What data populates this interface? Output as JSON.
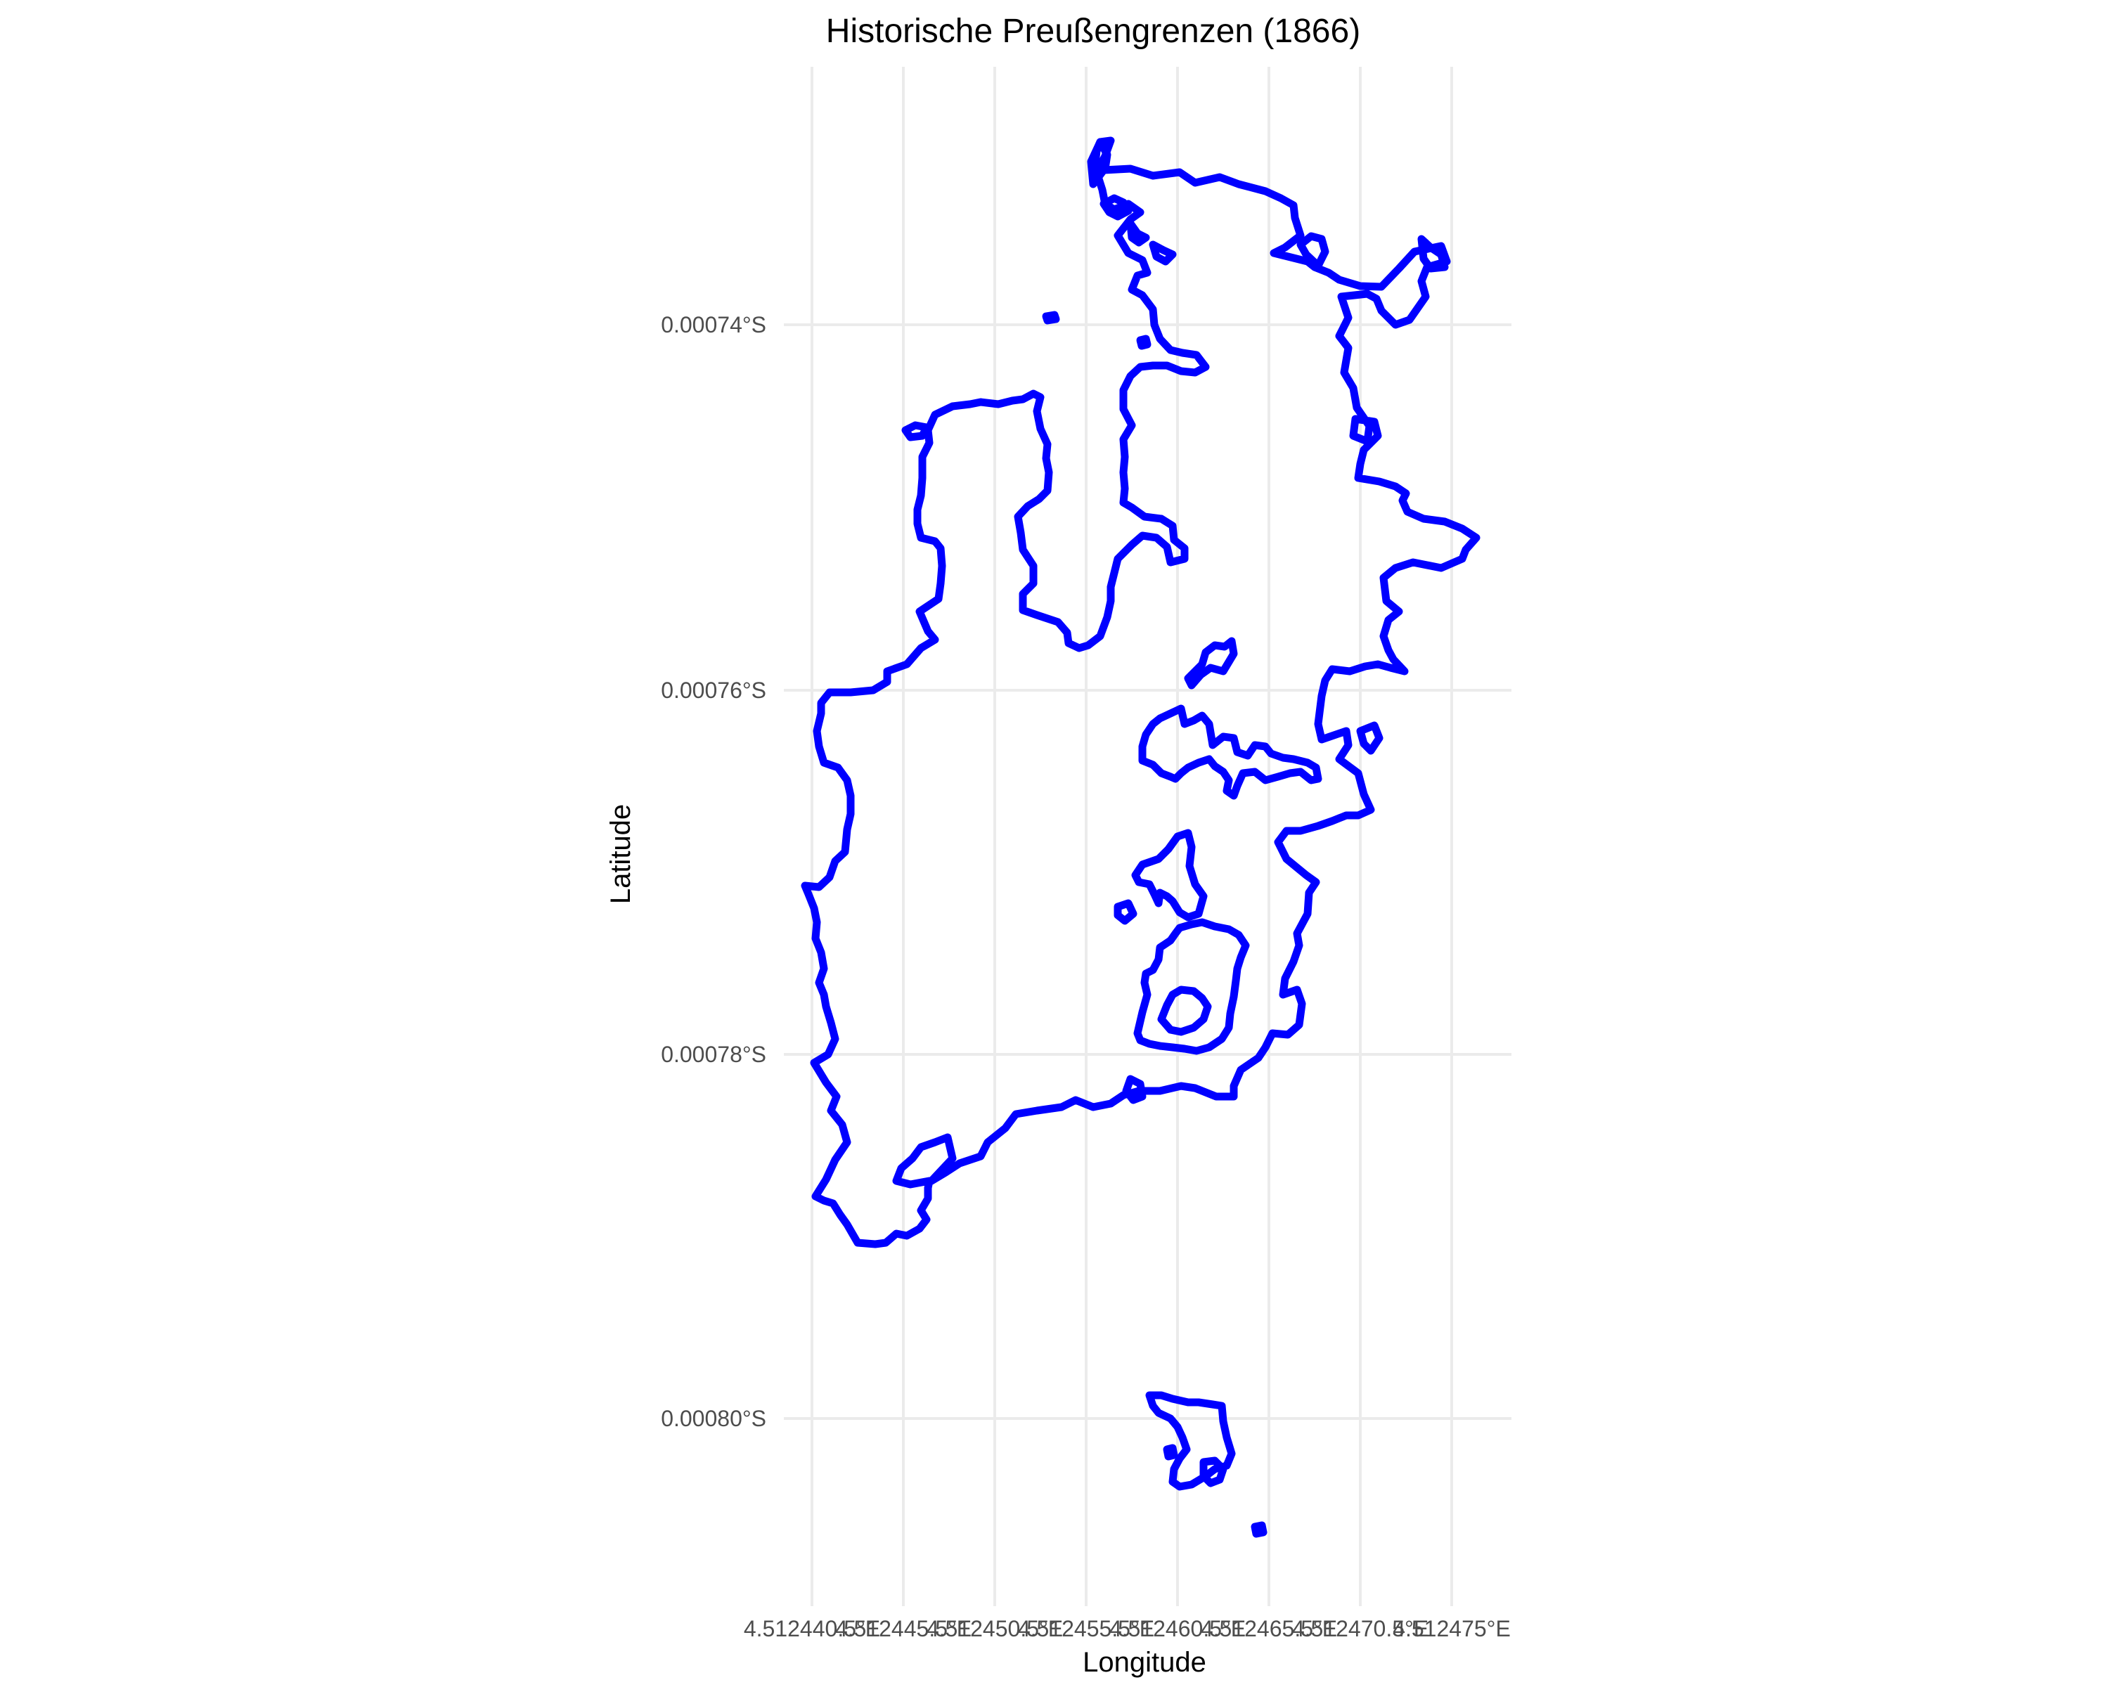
{
  "chart_data": {
    "type": "map",
    "title": "Historische Preußengrenzen (1866)",
    "xlabel": "Longitude",
    "ylabel": "Latitude",
    "x_ticks": [
      "4.512440.5°E",
      "4.512445.5°E",
      "4.512450.5°E",
      "4.512455.5°E",
      "4.512460.5°E",
      "4.512465.5°E",
      "4.512470.5°E",
      "4.512475°E"
    ],
    "y_ticks": [
      "0.00074°S",
      "0.00076°S",
      "0.00078°S",
      "0.00080°S"
    ],
    "grid": true,
    "boundary_color": "#0000ff",
    "regions": [
      "main-territory",
      "north-shore-island",
      "northwest-small-island",
      "inner-ring-upper",
      "inner-ring-middle",
      "inner-ring-lower",
      "southern-exclave",
      "small-islet-south"
    ]
  }
}
